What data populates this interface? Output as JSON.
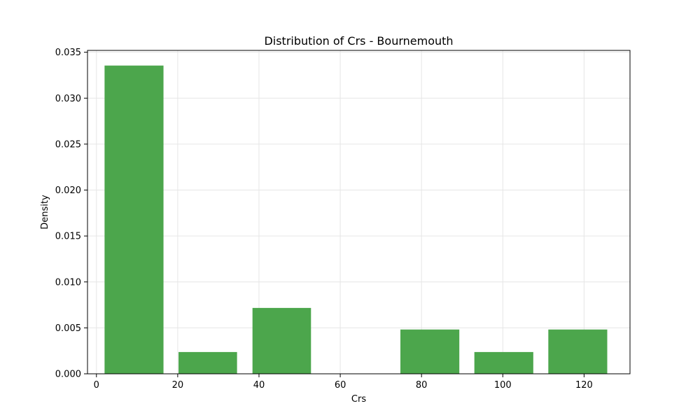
{
  "chart_data": {
    "type": "bar",
    "title": "Distribution of Crs - Bournemouth",
    "xlabel": "Crs",
    "ylabel": "Density",
    "bars": [
      {
        "x0": 2,
        "x1": 16.5,
        "value": 0.03355
      },
      {
        "x0": 20.2,
        "x1": 34.6,
        "value": 0.00237
      },
      {
        "x0": 38.4,
        "x1": 52.8,
        "value": 0.00717
      },
      {
        "x0": 56.6,
        "x1": 71.0,
        "value": 0
      },
      {
        "x0": 74.8,
        "x1": 89.3,
        "value": 0.00482
      },
      {
        "x0": 93.0,
        "x1": 107.5,
        "value": 0.00237
      },
      {
        "x0": 111.2,
        "x1": 125.7,
        "value": 0.00482
      }
    ],
    "xlim": [
      -2.2,
      131.3
    ],
    "ylim": [
      0,
      0.0352
    ],
    "xticks": [
      0,
      20,
      40,
      60,
      80,
      100,
      120
    ],
    "xtick_labels": [
      "0",
      "20",
      "40",
      "60",
      "80",
      "100",
      "120"
    ],
    "yticks": [
      0,
      0.005,
      0.01,
      0.015,
      0.02,
      0.025,
      0.03,
      0.035
    ],
    "ytick_labels": [
      "0.000",
      "0.005",
      "0.010",
      "0.015",
      "0.020",
      "0.025",
      "0.030",
      "0.035"
    ],
    "grid": true,
    "bar_color": "#4ca64c"
  }
}
